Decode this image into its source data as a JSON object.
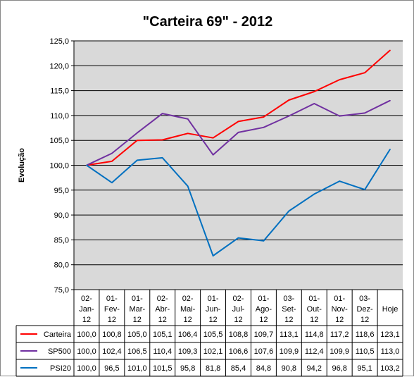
{
  "chart_data": {
    "type": "line",
    "title": "\"Carteira 69\" - 2012",
    "xlabel": "",
    "ylabel": "Evolução",
    "ylim": [
      75,
      125
    ],
    "yticks": [
      "75,0",
      "80,0",
      "85,0",
      "90,0",
      "95,0",
      "100,0",
      "105,0",
      "110,0",
      "115,0",
      "120,0",
      "125,0"
    ],
    "grid": true,
    "legend": "data-table-left",
    "categories": [
      [
        "02-",
        "Jan-",
        "12"
      ],
      [
        "01-",
        "Fev-",
        "12"
      ],
      [
        "01-",
        "Mar-",
        "12"
      ],
      [
        "02-",
        "Abr-",
        "12"
      ],
      [
        "02-",
        "Mai-",
        "12"
      ],
      [
        "01-",
        "Jun-",
        "12"
      ],
      [
        "02-",
        "Jul-",
        "12"
      ],
      [
        "01-",
        "Ago-",
        "12"
      ],
      [
        "03-",
        "Set-",
        "12"
      ],
      [
        "01-",
        "Out-",
        "12"
      ],
      [
        "01-",
        "Nov-",
        "12"
      ],
      [
        "03-",
        "Dez-",
        "12"
      ],
      [
        "Hoje"
      ]
    ],
    "series": [
      {
        "name": "Carteira",
        "color": "#ff0000",
        "values": [
          100.0,
          100.8,
          105.0,
          105.1,
          106.4,
          105.5,
          108.8,
          109.7,
          113.1,
          114.8,
          117.2,
          118.6,
          123.1
        ],
        "labels": [
          "100,0",
          "100,8",
          "105,0",
          "105,1",
          "106,4",
          "105,5",
          "108,8",
          "109,7",
          "113,1",
          "114,8",
          "117,2",
          "118,6",
          "123,1"
        ]
      },
      {
        "name": "SP500",
        "color": "#7030a0",
        "values": [
          100.0,
          102.4,
          106.5,
          110.4,
          109.3,
          102.1,
          106.6,
          107.6,
          109.9,
          112.4,
          109.9,
          110.5,
          113.0
        ],
        "labels": [
          "100,0",
          "102,4",
          "106,5",
          "110,4",
          "109,3",
          "102,1",
          "106,6",
          "107,6",
          "109,9",
          "112,4",
          "109,9",
          "110,5",
          "113,0"
        ]
      },
      {
        "name": "PSI20",
        "color": "#0070c0",
        "values": [
          100.0,
          96.5,
          101.0,
          101.5,
          95.8,
          81.8,
          85.4,
          84.8,
          90.8,
          94.2,
          96.8,
          95.1,
          103.2
        ],
        "labels": [
          "100,0",
          "96,5",
          "101,0",
          "101,5",
          "95,8",
          "81,8",
          "85,4",
          "84,8",
          "90,8",
          "94,2",
          "96,8",
          "95,1",
          "103,2"
        ]
      }
    ]
  }
}
